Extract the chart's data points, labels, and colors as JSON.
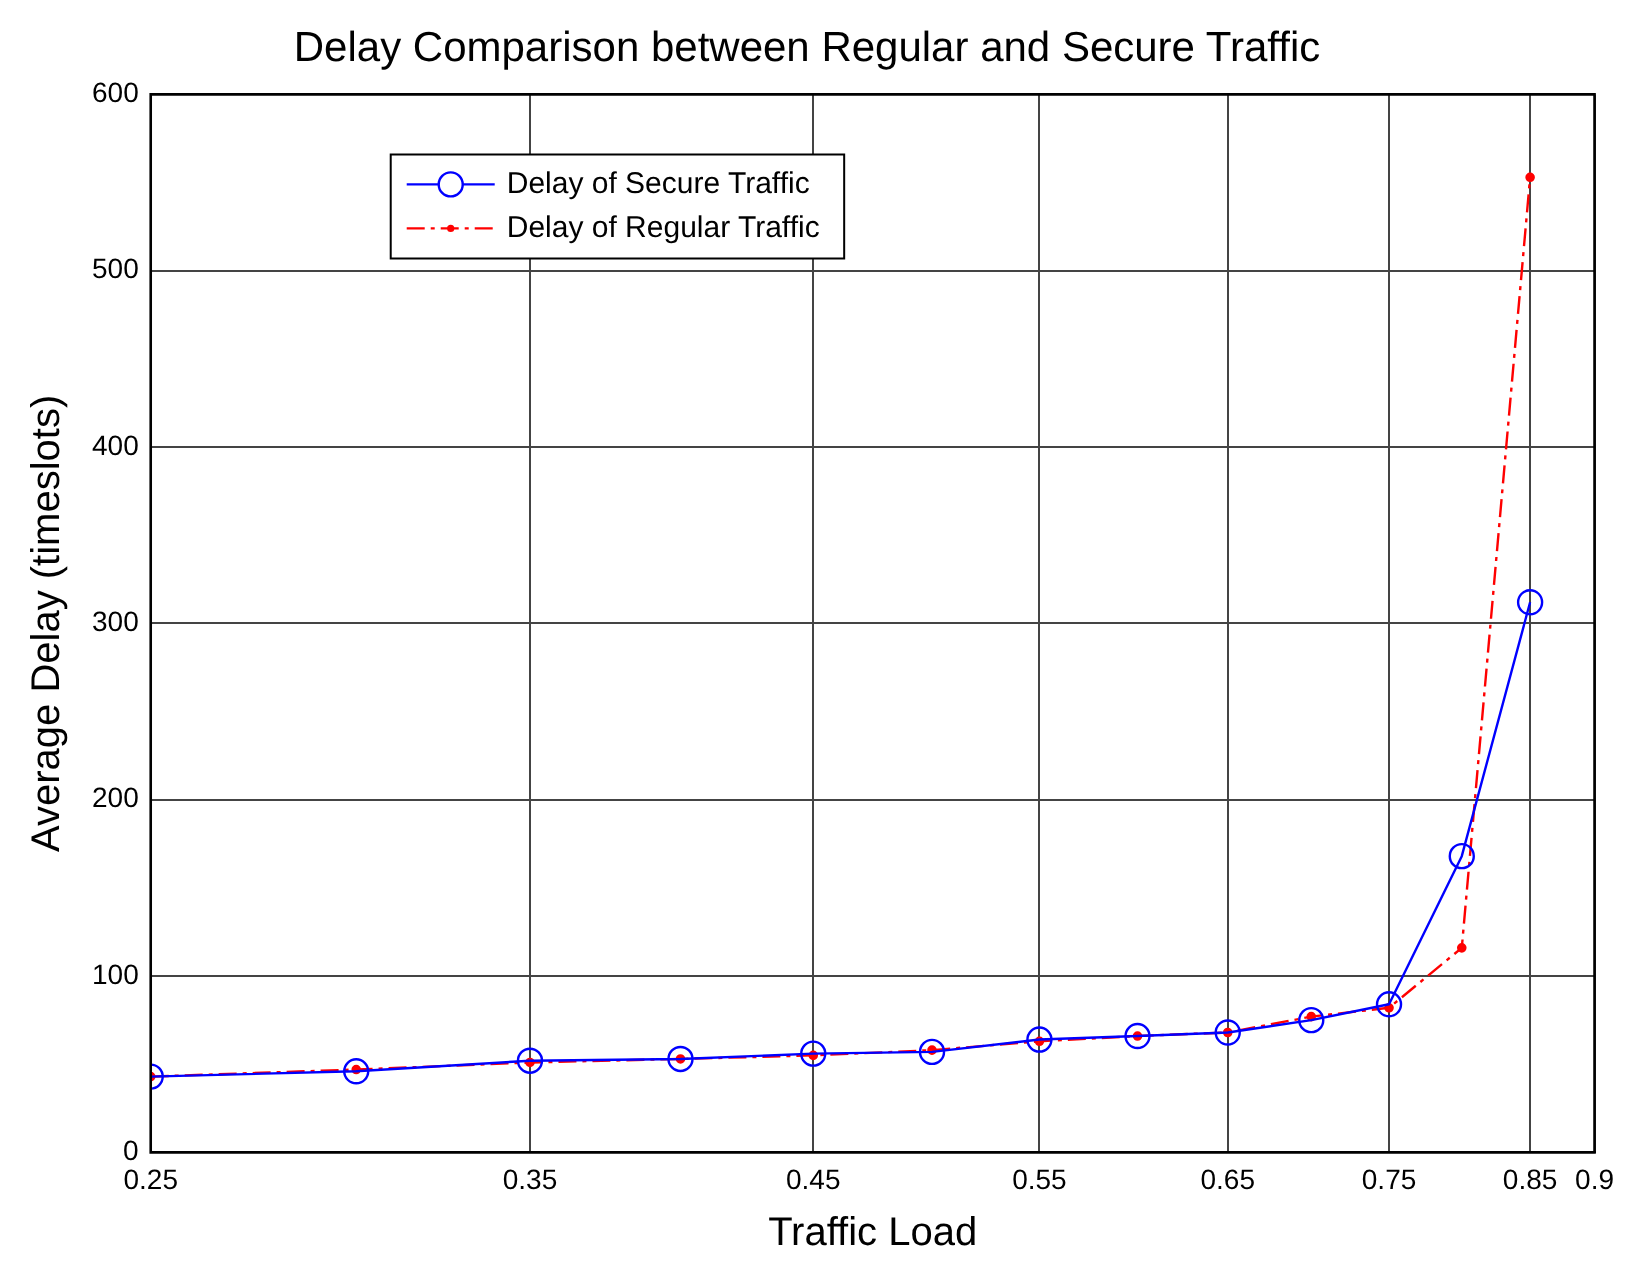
{
  "chart_data": {
    "type": "line",
    "title": "Delay Comparison between Regular and Secure Traffic",
    "xlabel": "Traffic Load",
    "ylabel": "Average Delay (timeslots)",
    "x": [
      0.25,
      0.3,
      0.35,
      0.4,
      0.45,
      0.5,
      0.55,
      0.6,
      0.65,
      0.7,
      0.75,
      0.8,
      0.85
    ],
    "series": [
      {
        "name": "Delay of Secure Traffic",
        "color": "#0000ff",
        "marker": "circle",
        "line_style": "solid",
        "values": [
          43,
          46,
          52,
          53,
          56,
          57,
          64,
          66,
          68,
          75,
          84,
          168,
          312
        ]
      },
      {
        "name": "Delay of Regular Traffic",
        "color": "#ff0000",
        "marker": "point",
        "line_style": "dashdot",
        "values": [
          43,
          47,
          51,
          53,
          55,
          58,
          63,
          66,
          68,
          77,
          82,
          116,
          553
        ]
      }
    ],
    "log": "x",
    "xlim": [
      0.25,
      0.9
    ],
    "xticks": [
      0.25,
      0.35,
      0.45,
      0.55,
      0.65,
      0.75,
      0.85,
      0.9
    ],
    "ylim": [
      0,
      600
    ],
    "yticks": [
      0,
      100,
      200,
      300,
      400,
      500,
      600
    ],
    "grid": true,
    "legend": "top left"
  }
}
